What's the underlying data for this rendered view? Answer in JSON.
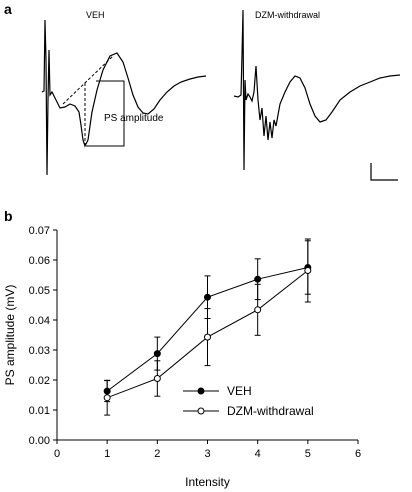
{
  "panel_a": {
    "letter": "a",
    "left_trace_label": "VEH",
    "right_trace_label": "DZM-withdrawal",
    "annotation": "PS amplitude"
  },
  "chart_data": {
    "type": "line",
    "panel_letter": "b",
    "xlabel": "Intensity",
    "ylabel": "PS amplitude (mV)",
    "xlim": [
      0,
      6
    ],
    "ylim": [
      0,
      0.07
    ],
    "x_ticks": [
      "0",
      "1",
      "2",
      "3",
      "4",
      "5",
      "6"
    ],
    "y_ticks": [
      "0.00",
      "0.01",
      "0.02",
      "0.03",
      "0.04",
      "0.05",
      "0.06",
      "0.07"
    ],
    "grid": false,
    "legend_position": "bottom-right",
    "series": [
      {
        "name": "VEH",
        "marker": "filled-circle",
        "color": "#000000",
        "x": [
          1,
          2,
          3,
          4,
          5
        ],
        "y": [
          0.0163,
          0.0288,
          0.0476,
          0.0536,
          0.0575
        ],
        "err": [
          0.0035,
          0.0055,
          0.0071,
          0.0068,
          0.0089
        ]
      },
      {
        "name": "DZM-withdrawal",
        "marker": "open-circle",
        "color": "#000000",
        "x": [
          1,
          2,
          3,
          4,
          5
        ],
        "y": [
          0.0141,
          0.0205,
          0.0343,
          0.0434,
          0.0565
        ],
        "err": [
          0.0058,
          0.0059,
          0.0095,
          0.0085,
          0.0105
        ]
      }
    ]
  }
}
